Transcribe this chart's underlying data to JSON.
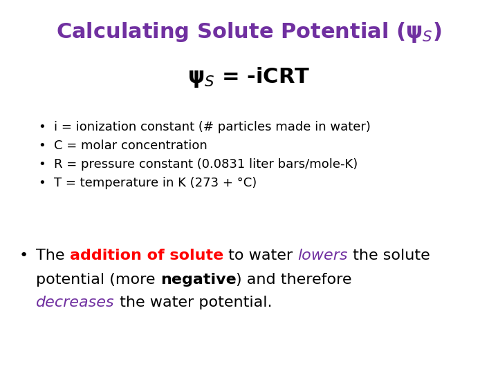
{
  "bg_color": "#ffffff",
  "title_color": "#7030A0",
  "red_color": "#FF0000",
  "purple_color": "#7030A0",
  "black_color": "#000000",
  "title_text": "Calculating Solute Potential (ψ$_S$)",
  "formula_text": "ψ$_S$ = -iCRT",
  "bullet_items": [
    "i = ionization constant (# particles made in water)",
    "C = molar concentration",
    "R = pressure constant (0.0831 liter bars/mole-K)",
    "T = temperature in K (273 + °C)"
  ],
  "title_fontsize": 22,
  "formula_fontsize": 22,
  "bullet_fontsize": 13,
  "para_fontsize": 16,
  "para_line1": [
    [
      "The ",
      "black",
      false,
      false
    ],
    [
      "addition of solute",
      "red",
      true,
      false
    ],
    [
      " to water ",
      "black",
      false,
      false
    ],
    [
      "lowers",
      "purple",
      false,
      true
    ],
    [
      " the solute",
      "black",
      false,
      false
    ]
  ],
  "para_line2": [
    [
      "potential (more ",
      "black",
      false,
      false
    ],
    [
      "negative",
      "black",
      true,
      false
    ],
    [
      ") and therefore",
      "black",
      false,
      false
    ]
  ],
  "para_line3": [
    [
      "decreases",
      "purple",
      false,
      true
    ],
    [
      " the water potential.",
      "black",
      false,
      false
    ]
  ]
}
